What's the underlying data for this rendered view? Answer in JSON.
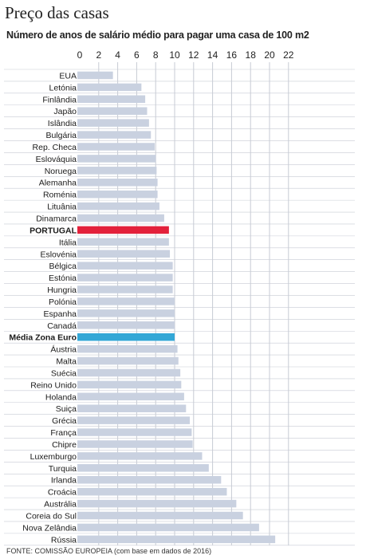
{
  "title": "Preço das casas",
  "subtitle": "Número de anos de salário médio para pagar uma casa de 100 m2",
  "source": "FONTE: COMISSÃO EUROPEIA (com base em dados de 2016)",
  "colors": {
    "default_bar": "#c9d1e0",
    "portugal_bar": "#e3213b",
    "euro_bar": "#33a7d6",
    "grid": "#c7cbd4",
    "row_line": "#c7cbd4"
  },
  "chart_data": {
    "type": "bar",
    "orientation": "horizontal",
    "title": "Preço das casas",
    "subtitle": "Número de anos de salário médio para pagar uma casa de 100 m2",
    "xlim": [
      0,
      22
    ],
    "xticks": [
      0,
      2,
      4,
      6,
      8,
      10,
      12,
      14,
      16,
      18,
      20,
      22
    ],
    "grid": true,
    "categories": [
      "EUA",
      "Letónia",
      "Finlândia",
      "Japão",
      "Islândia",
      "Bulgária",
      "Rep. Checa",
      "Eslováquia",
      "Noruega",
      "Alemanha",
      "Roménia",
      "Lituânia",
      "Dinamarca",
      "PORTUGAL",
      "Itália",
      "Eslovénia",
      "Bélgica",
      "Estónia",
      "Hungria",
      "Polónia",
      "Espanha",
      "Canadá",
      "Média Zona Euro",
      "Áustria",
      "Malta",
      "Suécia",
      "Reino Unido",
      "Holanda",
      "Suiça",
      "Grécia",
      "França",
      "Chipre",
      "Luxemburgo",
      "Turquia",
      "Irlanda",
      "Croácia",
      "Austrália",
      "Coreia do Sul",
      "Nova Zelândia",
      "Rússia"
    ],
    "values": [
      3.5,
      6.5,
      6.9,
      7.1,
      7.3,
      7.5,
      7.9,
      8.0,
      8.1,
      8.2,
      8.2,
      8.4,
      8.9,
      9.4,
      9.4,
      9.5,
      9.8,
      9.8,
      9.8,
      10.0,
      10.0,
      10.0,
      10.0,
      10.3,
      10.4,
      10.6,
      10.7,
      11.0,
      11.2,
      11.6,
      11.8,
      11.9,
      12.9,
      13.6,
      14.9,
      15.5,
      16.5,
      17.2,
      18.9,
      20.6
    ],
    "highlight": {
      "PORTUGAL": "portugal_bar",
      "Média Zona Euro": "euro_bar"
    },
    "bold_labels": [
      "PORTUGAL",
      "Média Zona Euro"
    ]
  }
}
